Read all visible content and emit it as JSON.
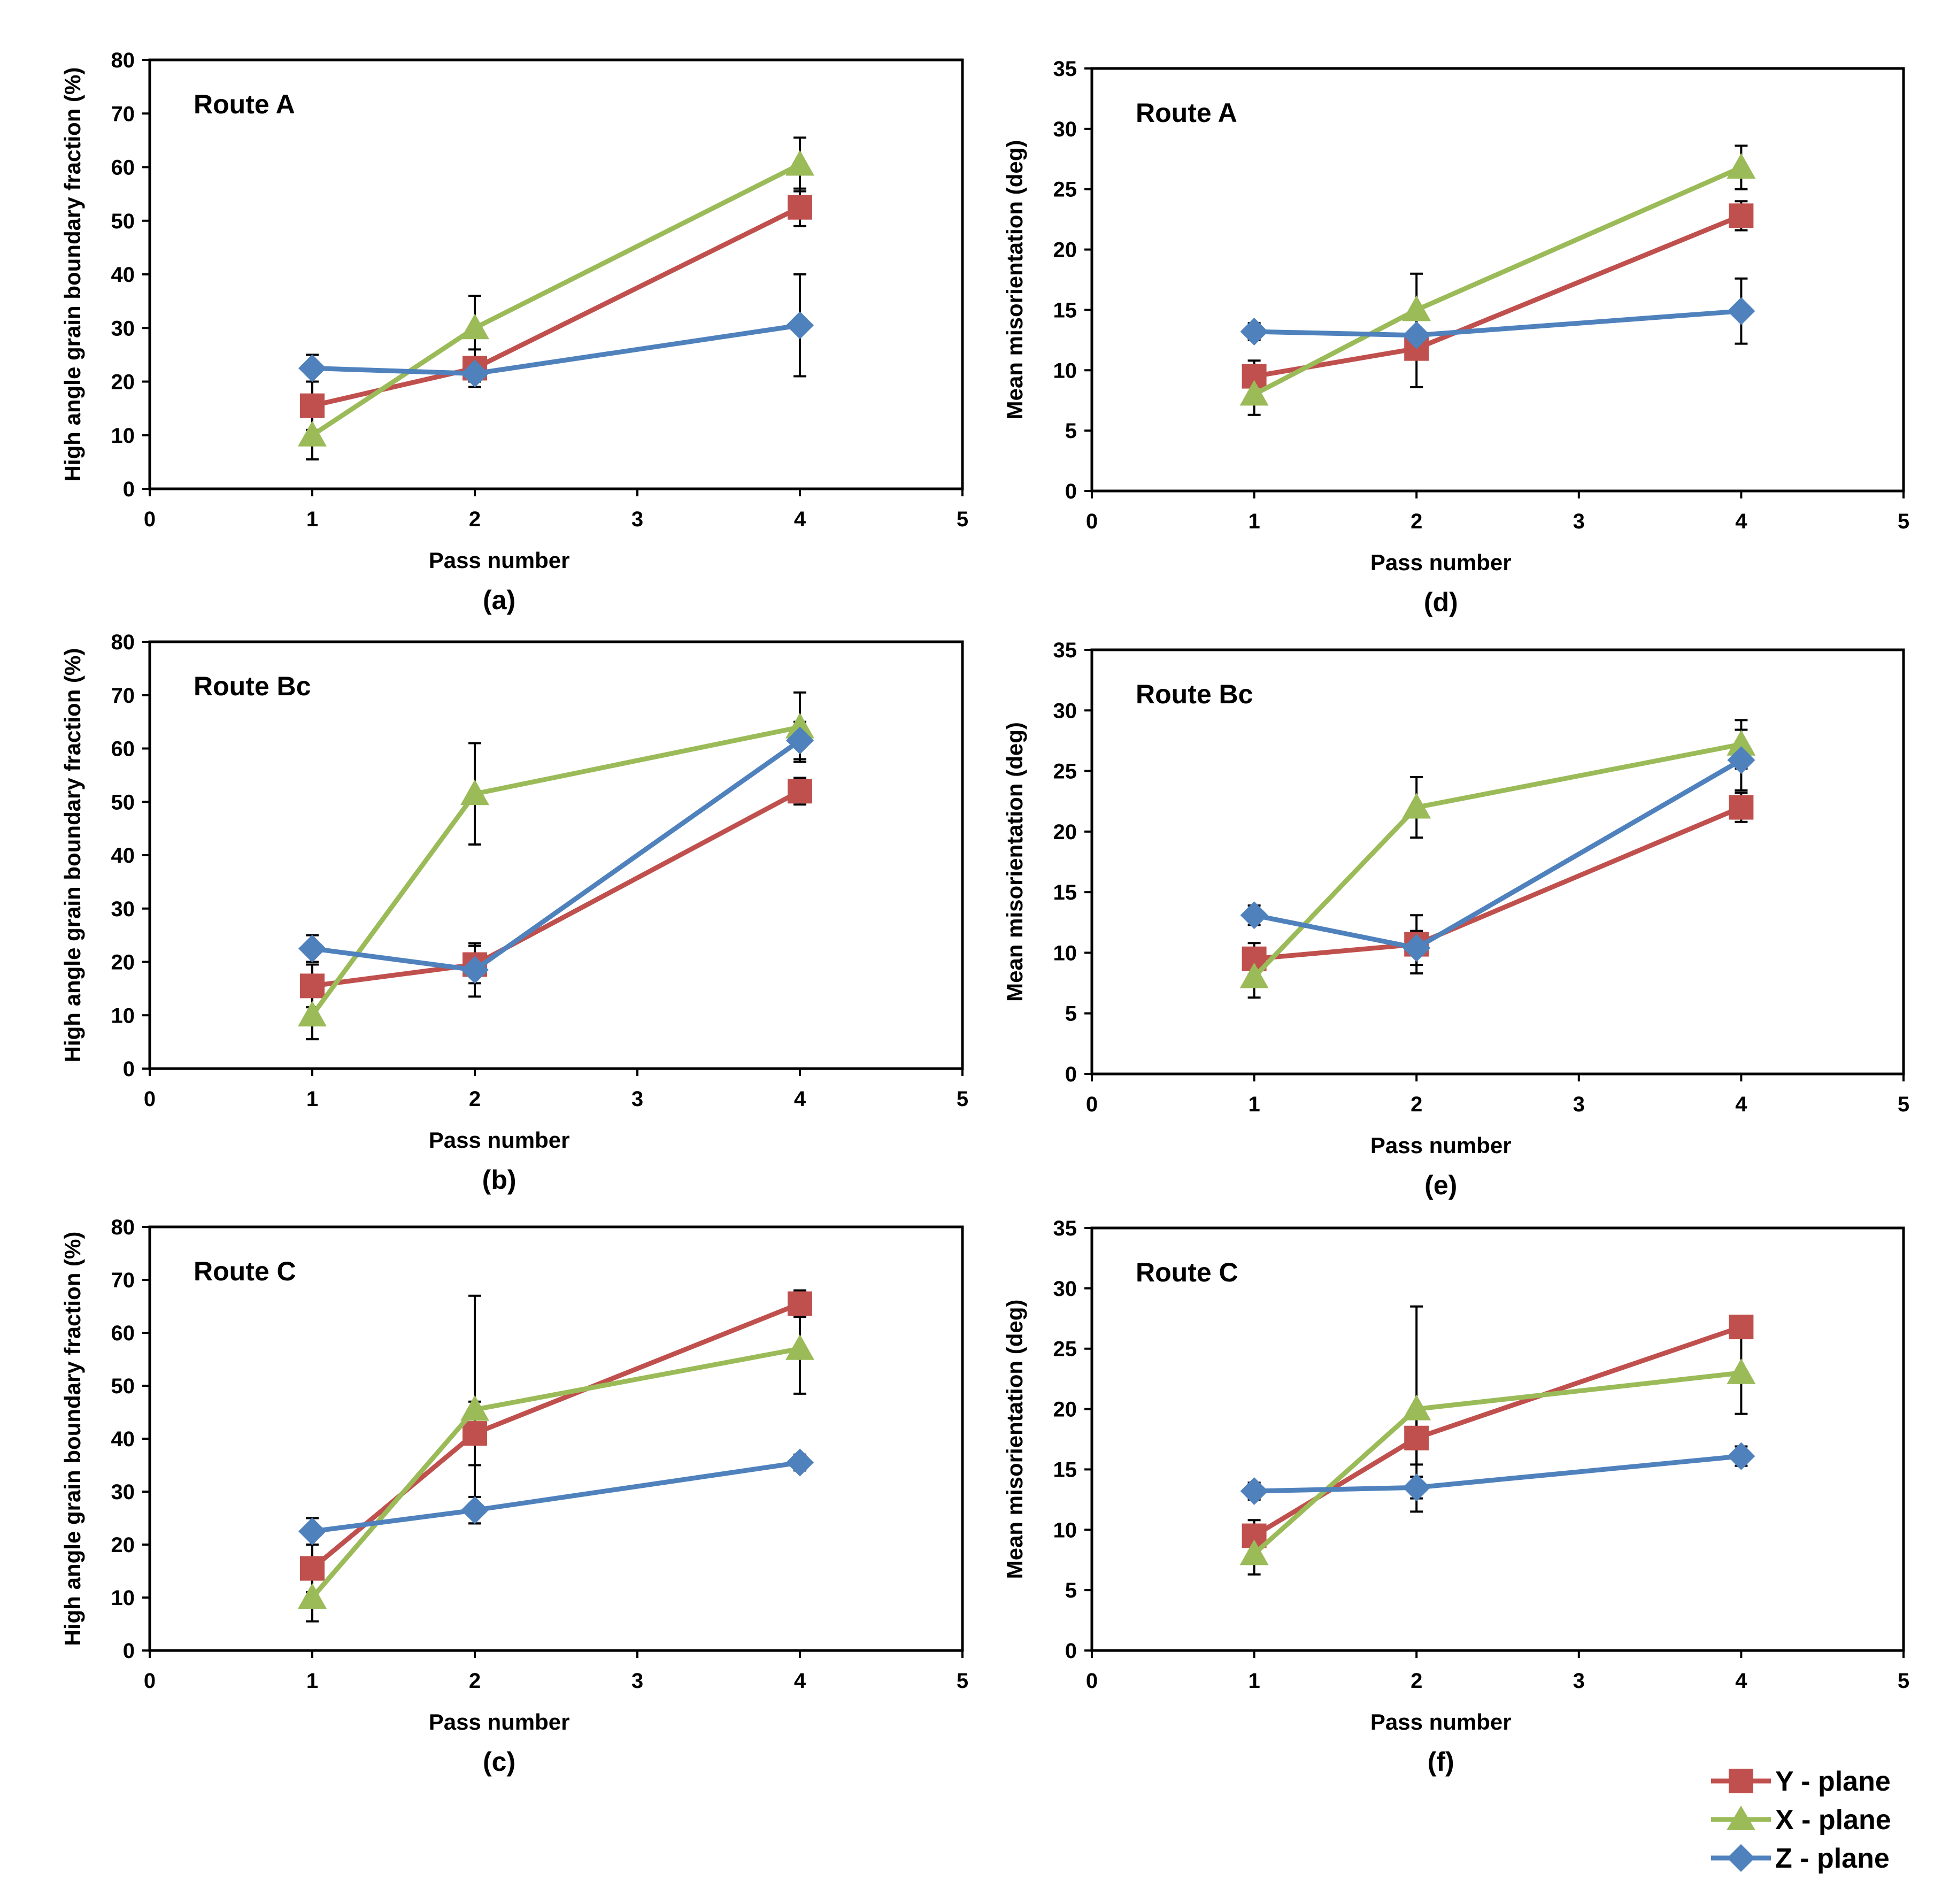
{
  "colors": {
    "Y": "#c0504d",
    "X": "#9bbb59",
    "Z": "#4f81bd"
  },
  "legend": [
    {
      "key": "Y",
      "label": "Y - plane",
      "marker": "square-icon"
    },
    {
      "key": "X",
      "label": "X - plane",
      "marker": "triangle-icon"
    },
    {
      "key": "Z",
      "label": "Z - plane",
      "marker": "diamond-icon"
    }
  ],
  "chart_data": [
    {
      "type": "line",
      "panel": "a",
      "caption": "(a)",
      "route": "Route A",
      "xlabel": "Pass number",
      "ylabel": "High angle grain boundary fraction (%)",
      "xlim": [
        0,
        5
      ],
      "ylim": [
        0,
        80
      ],
      "xticks": [
        "0",
        "1",
        "2",
        "3",
        "4",
        "5"
      ],
      "yticks": [
        "0",
        "10",
        "20",
        "30",
        "40",
        "50",
        "60",
        "70",
        "80"
      ],
      "x": [
        1,
        2,
        4
      ],
      "series": [
        {
          "key": "Y",
          "name": "Y - plane",
          "values": [
            15.5,
            22.5,
            52.5
          ],
          "err": [
            4.5,
            3.5,
            3.5
          ]
        },
        {
          "key": "X",
          "name": "X - plane",
          "values": [
            10,
            30,
            60.5
          ],
          "err": [
            4.5,
            6,
            5
          ]
        },
        {
          "key": "Z",
          "name": "Z - plane",
          "values": [
            22.5,
            21.5,
            30.5
          ],
          "err": [
            2.5,
            1.5,
            9.5
          ]
        }
      ]
    },
    {
      "type": "line",
      "panel": "b",
      "caption": "(b)",
      "route": "Route Bc",
      "xlabel": "Pass number",
      "ylabel": "High angle grain boundary fraction (%)",
      "xlim": [
        0,
        5
      ],
      "ylim": [
        0,
        80
      ],
      "xticks": [
        "0",
        "1",
        "2",
        "3",
        "4",
        "5"
      ],
      "yticks": [
        "0",
        "10",
        "20",
        "30",
        "40",
        "50",
        "60",
        "70",
        "80"
      ],
      "x": [
        1,
        2,
        4
      ],
      "series": [
        {
          "key": "Y",
          "name": "Y - plane",
          "values": [
            15.5,
            19.5,
            52
          ],
          "err": [
            4,
            3.5,
            2.5
          ]
        },
        {
          "key": "X",
          "name": "X - plane",
          "values": [
            10,
            51.5,
            64
          ],
          "err": [
            4.5,
            9.5,
            6.5
          ]
        },
        {
          "key": "Z",
          "name": "Z - plane",
          "values": [
            22.5,
            18.5,
            61.5
          ],
          "err": [
            2.5,
            5,
            3.5
          ]
        }
      ]
    },
    {
      "type": "line",
      "panel": "c",
      "caption": "(c)",
      "route": "Route C",
      "xlabel": "Pass number",
      "ylabel": "High angle grain boundary fraction (%)",
      "xlim": [
        0,
        5
      ],
      "ylim": [
        0,
        80
      ],
      "xticks": [
        "0",
        "1",
        "2",
        "3",
        "4",
        "5"
      ],
      "yticks": [
        "0",
        "10",
        "20",
        "30",
        "40",
        "50",
        "60",
        "70",
        "80"
      ],
      "x": [
        1,
        2,
        4
      ],
      "series": [
        {
          "key": "Y",
          "name": "Y - plane",
          "values": [
            15.5,
            41,
            65.5
          ],
          "err": [
            4.5,
            6,
            2.5
          ]
        },
        {
          "key": "X",
          "name": "X - plane",
          "values": [
            10,
            45.5,
            57
          ],
          "err": [
            4.5,
            21.5,
            8.5
          ]
        },
        {
          "key": "Z",
          "name": "Z - plane",
          "values": [
            22.5,
            26.5,
            35.5
          ],
          "err": [
            2.5,
            2.5,
            1.5
          ]
        }
      ]
    },
    {
      "type": "line",
      "panel": "d",
      "caption": "(d)",
      "route": "Route A",
      "xlabel": "Pass number",
      "ylabel": "Mean misorientation (deg)",
      "xlim": [
        0,
        5
      ],
      "ylim": [
        0,
        35
      ],
      "xticks": [
        "0",
        "1",
        "2",
        "3",
        "4",
        "5"
      ],
      "yticks": [
        "0",
        "5",
        "10",
        "15",
        "20",
        "25",
        "30",
        "35"
      ],
      "x": [
        1,
        2,
        4
      ],
      "series": [
        {
          "key": "Y",
          "name": "Y - plane",
          "values": [
            9.5,
            11.8,
            22.8
          ],
          "err": [
            1.3,
            3.2,
            1.2
          ]
        },
        {
          "key": "X",
          "name": "X - plane",
          "values": [
            8,
            15,
            26.8
          ],
          "err": [
            1.7,
            3,
            1.8
          ]
        },
        {
          "key": "Z",
          "name": "Z - plane",
          "values": [
            13.2,
            12.9,
            14.9
          ],
          "err": [
            0.7,
            0.5,
            2.7
          ]
        }
      ]
    },
    {
      "type": "line",
      "panel": "e",
      "caption": "(e)",
      "route": "Route Bc",
      "xlabel": "Pass number",
      "ylabel": "Mean misorientation (deg)",
      "xlim": [
        0,
        5
      ],
      "ylim": [
        0,
        35
      ],
      "xticks": [
        "0",
        "1",
        "2",
        "3",
        "4",
        "5"
      ],
      "yticks": [
        "0",
        "5",
        "10",
        "15",
        "20",
        "25",
        "30",
        "35"
      ],
      "x": [
        1,
        2,
        4
      ],
      "series": [
        {
          "key": "Y",
          "name": "Y - plane",
          "values": [
            9.5,
            10.7,
            22
          ],
          "err": [
            1.3,
            2.4,
            1.2
          ]
        },
        {
          "key": "X",
          "name": "X - plane",
          "values": [
            8,
            22,
            27.2
          ],
          "err": [
            1.7,
            2.5,
            2
          ]
        },
        {
          "key": "Z",
          "name": "Z - plane",
          "values": [
            13.1,
            10.4,
            25.9
          ],
          "err": [
            0.8,
            1.4,
            2.5
          ]
        }
      ]
    },
    {
      "type": "line",
      "panel": "f",
      "caption": "(f)",
      "route": "Route C",
      "xlabel": "Pass number",
      "ylabel": "Mean misorientation (deg)",
      "xlim": [
        0,
        5
      ],
      "ylim": [
        0,
        35
      ],
      "xticks": [
        "0",
        "1",
        "2",
        "3",
        "4",
        "5"
      ],
      "yticks": [
        "0",
        "5",
        "10",
        "15",
        "20",
        "25",
        "30",
        "35"
      ],
      "x": [
        1,
        2,
        4
      ],
      "series": [
        {
          "key": "Y",
          "name": "Y - plane",
          "values": [
            9.5,
            17.6,
            26.8
          ],
          "err": [
            1.3,
            2.2,
            0.8
          ]
        },
        {
          "key": "X",
          "name": "X - plane",
          "values": [
            8,
            20,
            23
          ],
          "err": [
            1.7,
            8.5,
            3.4
          ]
        },
        {
          "key": "Z",
          "name": "Z - plane",
          "values": [
            13.2,
            13.5,
            16.1
          ],
          "err": [
            0.7,
            0.9,
            0.8
          ]
        }
      ]
    }
  ]
}
